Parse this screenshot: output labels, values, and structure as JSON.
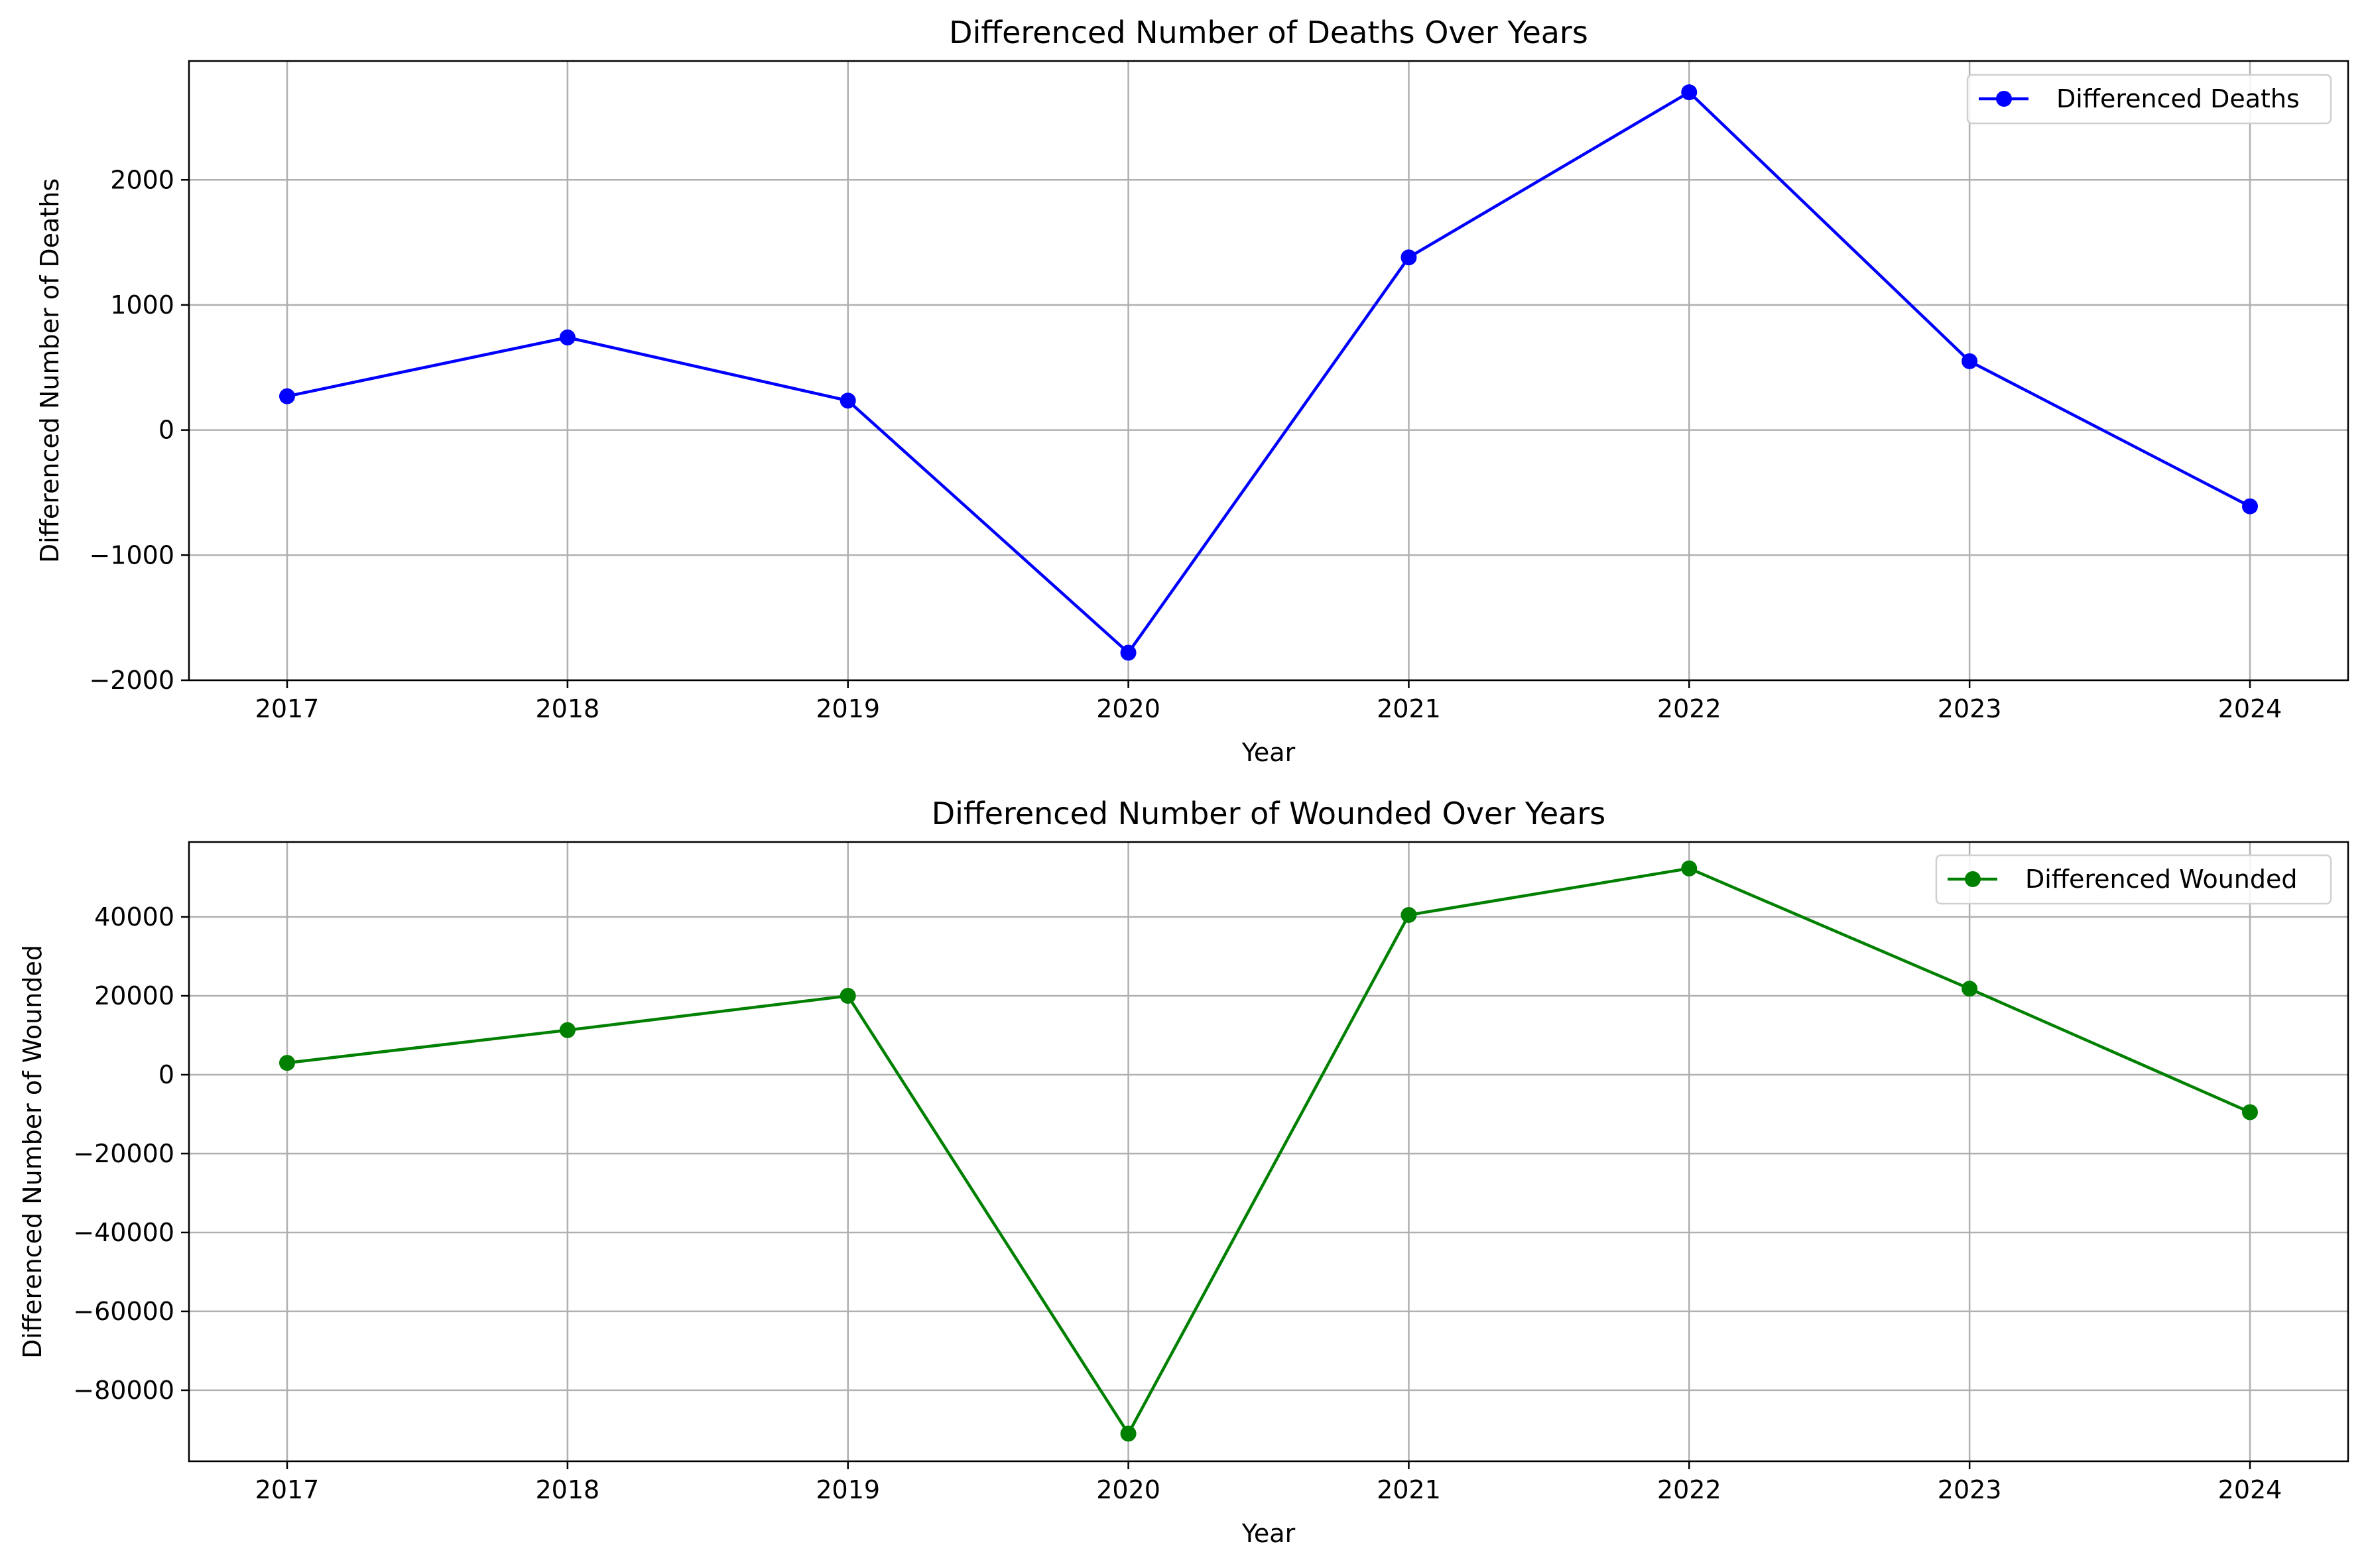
{
  "chart_data": [
    {
      "type": "line",
      "title": "Differenced Number of Deaths Over Years",
      "xlabel": "Year",
      "ylabel": "Differenced Number of Deaths",
      "x": [
        2017,
        2018,
        2019,
        2020,
        2021,
        2022,
        2023,
        2024
      ],
      "x_tick_labels": [
        "2017",
        "2018",
        "2019",
        "2020",
        "2021",
        "2022",
        "2023",
        "2024"
      ],
      "y_ticks": [
        -2000,
        -1000,
        0,
        1000,
        2000
      ],
      "y_tick_labels": [
        "−2000",
        "−1000",
        "0",
        "1000",
        "2000"
      ],
      "ylim": [
        -2000,
        2950
      ],
      "xlim": [
        2016.65,
        2024.35
      ],
      "grid": true,
      "legend_position": "upper right",
      "series": [
        {
          "name": "Differenced Deaths",
          "color": "#0000ff",
          "marker": "circle",
          "values": [
            270,
            740,
            235,
            -1780,
            1380,
            2700,
            550,
            -610
          ]
        }
      ]
    },
    {
      "type": "line",
      "title": "Differenced Number of Wounded Over Years",
      "xlabel": "Year",
      "ylabel": "Differenced Number of Wounded",
      "x": [
        2017,
        2018,
        2019,
        2020,
        2021,
        2022,
        2023,
        2024
      ],
      "x_tick_labels": [
        "2017",
        "2018",
        "2019",
        "2020",
        "2021",
        "2022",
        "2023",
        "2024"
      ],
      "y_ticks": [
        -80000,
        -60000,
        -40000,
        -20000,
        0,
        20000,
        40000
      ],
      "y_tick_labels": [
        "−80000",
        "−60000",
        "−40000",
        "−20000",
        "0",
        "20000",
        "40000"
      ],
      "ylim": [
        -98000,
        59000
      ],
      "xlim": [
        2016.65,
        2024.35
      ],
      "grid": true,
      "legend_position": "upper right",
      "series": [
        {
          "name": "Differenced Wounded",
          "color": "#008000",
          "marker": "circle",
          "values": [
            3000,
            11300,
            20000,
            -91000,
            40500,
            52300,
            21800,
            -9500
          ]
        }
      ]
    }
  ]
}
